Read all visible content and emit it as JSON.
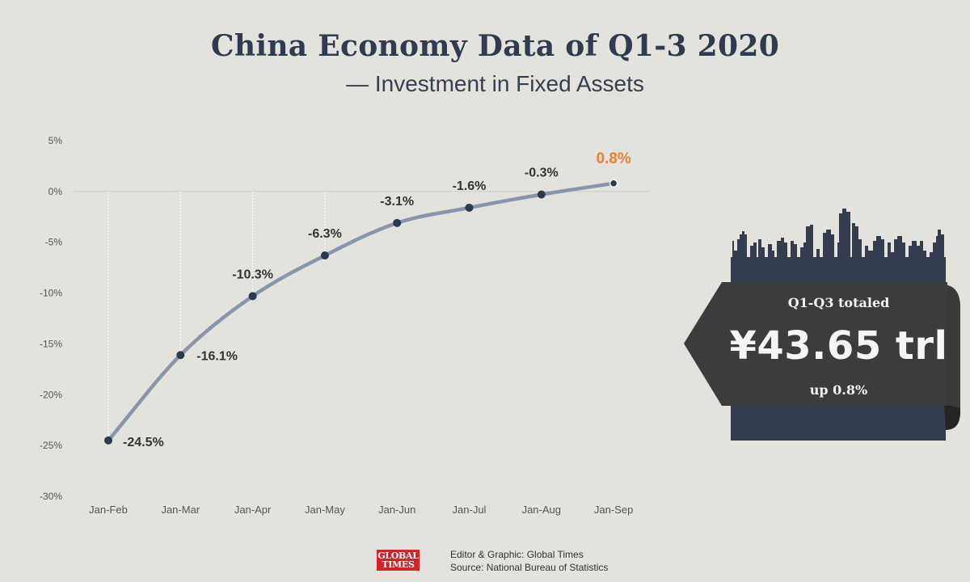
{
  "title": "China Economy Data of Q1-3 2020",
  "subtitle": "— Investment in Fixed Assets",
  "chart_data": {
    "type": "line",
    "title": "China Economy Data of Q1-3 2020",
    "subtitle": "— Investment in Fixed Assets",
    "categories": [
      "Jan-Feb",
      "Jan-Mar",
      "Jan-Apr",
      "Jan-May",
      "Jan-Jun",
      "Jan-Jul",
      "Jan-Aug",
      "Jan-Sep"
    ],
    "values": [
      -24.5,
      -16.1,
      -10.3,
      -6.3,
      -3.1,
      -1.6,
      -0.3,
      0.8
    ],
    "data_labels": [
      "-24.5%",
      "-16.1%",
      "-10.3%",
      "-6.3%",
      "-3.1%",
      "-1.6%",
      "-0.3%",
      "0.8%"
    ],
    "ylim": [
      -30,
      5
    ],
    "yticks": [
      5,
      0,
      -5,
      -10,
      -15,
      -20,
      -25,
      -30
    ],
    "ytick_labels": [
      "5%",
      "0%",
      "-5%",
      "-10%",
      "-15%",
      "-20%",
      "-25%",
      "-30%"
    ],
    "xlabel": "",
    "ylabel": "",
    "grid": false,
    "line_color": "#8796aa",
    "marker_color": "#2c3a4e",
    "highlight_color": "#e8803a"
  },
  "summary": {
    "caption": "Q1-Q3 totaled",
    "total": "¥43.65 trl",
    "change": "up 0.8%",
    "card_color": "#333d4e",
    "banner_color": "#3c3c3c"
  },
  "footer": {
    "logo_line1": "GLOBAL",
    "logo_line2": "TIMES",
    "credit": "Editor & Graphic: Global Times",
    "source": "Source: National Bureau of Statistics"
  }
}
